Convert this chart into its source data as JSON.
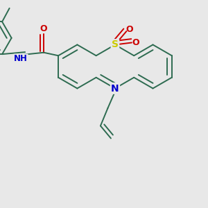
{
  "bg_color": "#e8e8e8",
  "bond_color": "#2d6b50",
  "bond_width": 1.4,
  "figsize": [
    3.0,
    3.0
  ],
  "dpi": 100,
  "xlim": [
    0,
    10
  ],
  "ylim": [
    0,
    10
  ],
  "S_color": "#cccc00",
  "N_color": "#0000cc",
  "O_color": "#cc0000",
  "font_size": 9
}
